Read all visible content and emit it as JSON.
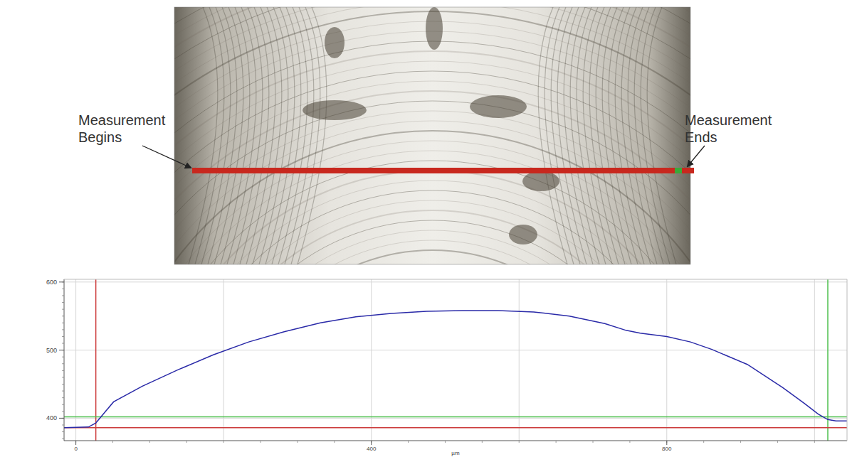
{
  "chart_data": {
    "type": "line",
    "x_label": "µm",
    "annotations": [
      "Measurement Begins",
      "Measurement Ends"
    ],
    "xlim": [
      -16,
      1044
    ],
    "ylim": [
      367,
      604
    ],
    "xticks": [
      0,
      400,
      800
    ],
    "yticks": [
      400,
      500,
      600
    ],
    "grid": true,
    "x": [
      -16,
      17,
      27,
      37,
      51,
      90,
      138,
      186,
      234,
      282,
      331,
      379,
      427,
      475,
      523,
      572,
      620,
      668,
      716,
      745,
      764,
      800,
      832,
      861,
      909,
      957,
      986,
      1005,
      1018,
      1029,
      1044
    ],
    "series": [
      {
        "color": "#2a2aa8",
        "values": [
          386,
          387,
          393,
          406,
          424,
          447,
          471,
          493,
          512,
          527,
          540,
          549,
          554,
          557,
          558,
          558,
          556,
          550,
          539,
          529,
          525,
          520,
          512,
          501,
          479,
          445,
          422,
          406,
          398,
          396,
          396
        ]
      }
    ],
    "cursors": [
      {
        "axis": "x",
        "value": 27,
        "color": "#cc3b3b"
      },
      {
        "axis": "x",
        "value": 1018,
        "color": "#4cbf4c"
      },
      {
        "axis": "y",
        "value": 402,
        "color": "#4cbf4c"
      },
      {
        "axis": "y",
        "value": 386,
        "color": "#cc3b3b"
      }
    ]
  }
}
